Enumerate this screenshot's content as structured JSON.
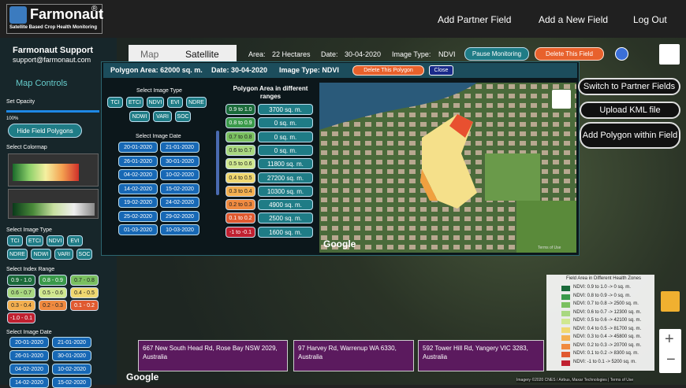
{
  "header": {
    "logo": "Farmonaut",
    "registered": "®",
    "tagline": "Satellite Based Crop Health Monitoring",
    "nav": [
      "Add Partner Field",
      "Add a New Field",
      "Log Out"
    ]
  },
  "sidebar": {
    "title": "Farmonaut Support",
    "email": "support@farmonaut.com",
    "map_controls": "Map Controls",
    "set_opacity": "Set Opacity",
    "opacity": "100%",
    "hide_polygons": "Hide Field Polygons",
    "select_colormap": "Select Colormap",
    "select_image_type": "Select Image Type",
    "image_types": [
      "TCI",
      "ETCI",
      "NDVI",
      "EVI",
      "NDRE",
      "NDWI",
      "VARI",
      "SOC"
    ],
    "select_index_range": "Select Index Range",
    "index_ranges": [
      "0.9 - 1.0",
      "0.8 - 0.9",
      "0.7 - 0.8",
      "0.6 - 0.7",
      "0.5 - 0.6",
      "0.4 - 0.5",
      "0.3 - 0.4",
      "0.2 - 0.3",
      "0.1 - 0.2",
      "-1.0 - 0.1"
    ],
    "select_image_date": "Select Image Date",
    "dates": [
      "20-01-2020",
      "21-01-2020",
      "26-01-2020",
      "30-01-2020",
      "04-02-2020",
      "10-02-2020",
      "14-02-2020",
      "15-02-2020"
    ]
  },
  "map": {
    "tabs": [
      "Map",
      "Satellite"
    ],
    "area_label": "Area:",
    "area": "22 Hectares",
    "date_label": "Date:",
    "date": "30-04-2020",
    "type_label": "Image Type:",
    "type": "NDVI",
    "pause": "Pause Monitoring",
    "delete_field": "Delete This Field",
    "right_buttons": [
      "Switch to Partner Fields",
      "Upload KML file",
      "Add Polygon within Field"
    ],
    "google": "Google",
    "attribution": "Imagery ©2020 CNES / Airbus, Maxar Technologies | Terms of Use"
  },
  "popup": {
    "area": "Polygon Area: 62000 sq. m.",
    "date": "Date: 30-04-2020",
    "type": "Image Type: NDVI",
    "delete": "Delete This Polygon",
    "close": "Close",
    "select_image_type": "Select Image Type",
    "image_types": [
      "TCI",
      "ETCI",
      "NDVI",
      "EVI",
      "NDRE",
      "NDWI",
      "VARI",
      "SOC"
    ],
    "select_image_date": "Select Image Date",
    "dates": [
      "20-01-2020",
      "21-01-2020",
      "26-01-2020",
      "30-01-2020",
      "04-02-2020",
      "10-02-2020",
      "14-02-2020",
      "15-02-2020",
      "19-02-2020",
      "24-02-2020",
      "25-02-2020",
      "29-02-2020",
      "01-03-2020",
      "10-03-2020"
    ],
    "ranges_title": "Polygon Area in different ranges",
    "ranges": [
      [
        "0.9 to 1.0",
        "3700 sq. m."
      ],
      [
        "0.8 to 0.9",
        "0 sq. m."
      ],
      [
        "0.7 to 0.8",
        "0 sq. m."
      ],
      [
        "0.6 to 0.7",
        "0 sq. m."
      ],
      [
        "0.5 to 0.6",
        "11800 sq. m."
      ],
      [
        "0.4 to 0.5",
        "27200 sq. m."
      ],
      [
        "0.3 to 0.4",
        "10300 sq. m."
      ],
      [
        "0.2 to 0.3",
        "4900 sq. m."
      ],
      [
        "0.1 to 0.2",
        "2500 sq. m."
      ],
      [
        "-1 to -0.1",
        "1600 sq. m."
      ]
    ],
    "google": "Google",
    "terms": "Terms of Use"
  },
  "legend": {
    "title": "Field Area in Different Health Zones",
    "rows": [
      "NDVI: 0.9 to 1.0 -> 0 sq. m.",
      "NDVI: 0.8 to 0.9 -> 0 sq. m.",
      "NDVI: 0.7 to 0.8 -> 2500 sq. m.",
      "NDVI: 0.6 to 0.7 -> 12300 sq. m.",
      "NDVI: 0.5 to 0.6 -> 42100 sq. m.",
      "NDVI: 0.4 to 0.5 -> 81700 sq. m.",
      "NDVI: 0.3 to 0.4 -> 45800 sq. m.",
      "NDVI: 0.2 to 0.3 -> 20700 sq. m.",
      "NDVI: 0.1 to 0.2 -> 8300 sq. m.",
      "NDVI: -1 to 0.1 -> 5200 sq. m."
    ]
  },
  "addresses": [
    "667 New South Head Rd, Rose Bay NSW 2029, Australia",
    "97 Harvey Rd, Warrenup WA 6330, Australia",
    "592 Tower Hill Rd, Yangery VIC 3283, Australia"
  ]
}
